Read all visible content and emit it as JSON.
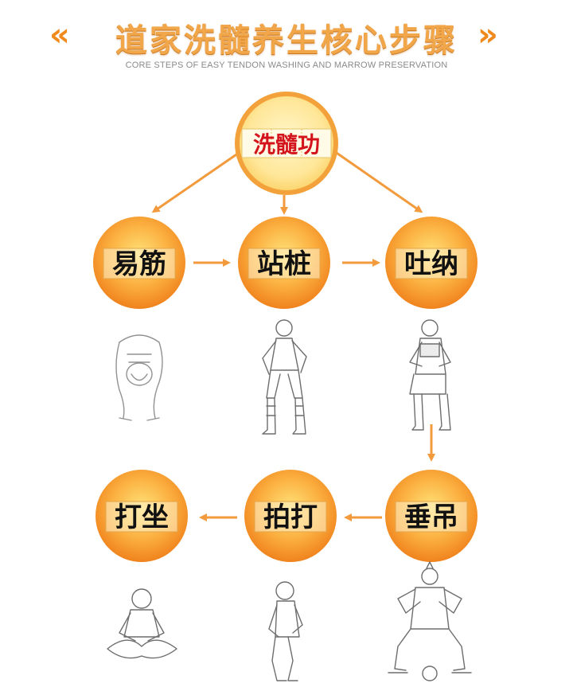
{
  "header": {
    "title": "道家洗髓养生核心步骤",
    "subtitle": "CORE STEPS OF EASY TENDON WASHING AND MARROW PRESERVATION"
  },
  "root": {
    "label": "洗髓功"
  },
  "steps": [
    {
      "label": "易筋",
      "figure": "tendon-stretch-figure"
    },
    {
      "label": "站桩",
      "figure": "standing-stance-figure"
    },
    {
      "label": "吐纳",
      "figure": "breathing-figure"
    },
    {
      "label": "垂吊",
      "figure": "horse-stance-figure"
    },
    {
      "label": "拍打",
      "figure": "patting-figure"
    },
    {
      "label": "打坐",
      "figure": "meditation-figure"
    }
  ],
  "colors": {
    "accent": "#f08a1c",
    "arrow": "#f29a3c",
    "node_light": "#ffe37a",
    "node_dark": "#f0851f",
    "root_text": "#d4141c",
    "title": "#f2a64a"
  }
}
